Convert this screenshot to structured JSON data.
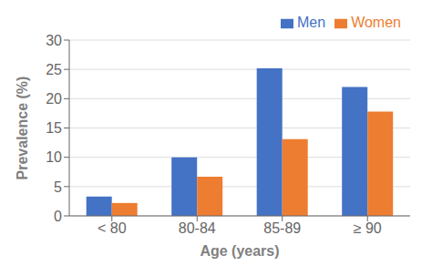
{
  "chart_data": {
    "type": "bar",
    "categories": [
      "< 80",
      "80-84",
      "85-89",
      "≥ 90"
    ],
    "series": [
      {
        "name": "Men",
        "color": "#4472C4",
        "values": [
          3.3,
          10.0,
          25.2,
          22.0
        ]
      },
      {
        "name": "Women",
        "color": "#ED7D31",
        "values": [
          2.2,
          6.7,
          13.1,
          17.8
        ]
      }
    ],
    "xlabel": "Age (years)",
    "ylabel": "Prevalence (%)",
    "ylim": [
      0,
      30
    ],
    "yticks": [
      0,
      5,
      10,
      15,
      20,
      25,
      30
    ],
    "grid": true,
    "legend": "upper right"
  }
}
